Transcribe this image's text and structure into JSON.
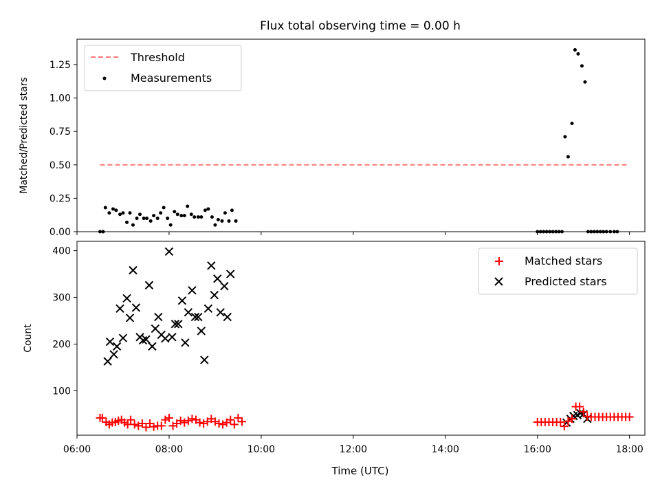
{
  "chart_data": [
    {
      "type": "scatter",
      "title": "Flux total observing time = 0.00 h",
      "xlabel": "",
      "ylabel": "Matched/Predicted stars",
      "xlim": [
        "06:00",
        "18:20"
      ],
      "ylim": [
        0,
        1.44
      ],
      "yticks": [
        0.0,
        0.25,
        0.5,
        0.75,
        1.0,
        1.25
      ],
      "ytick_labels": [
        "0.00",
        "0.25",
        "0.50",
        "0.75",
        "1.00",
        "1.25"
      ],
      "legend_position": "top-left",
      "threshold": {
        "name": "Threshold",
        "y": 0.5,
        "x_range": [
          "06:30",
          "18:00"
        ],
        "color": "#ff7777",
        "style": "dashed"
      },
      "series": [
        {
          "name": "Measurements",
          "color": "#000000",
          "marker": "dot",
          "points": [
            [
              "06:30",
              0.0
            ],
            [
              "06:34",
              0.0
            ],
            [
              "06:37",
              0.18
            ],
            [
              "06:42",
              0.14
            ],
            [
              "06:47",
              0.17
            ],
            [
              "06:51",
              0.16
            ],
            [
              "06:56",
              0.13
            ],
            [
              "07:00",
              0.14
            ],
            [
              "07:05",
              0.07
            ],
            [
              "07:09",
              0.14
            ],
            [
              "07:13",
              0.05
            ],
            [
              "07:18",
              0.1
            ],
            [
              "07:22",
              0.13
            ],
            [
              "07:27",
              0.1
            ],
            [
              "07:31",
              0.1
            ],
            [
              "07:36",
              0.08
            ],
            [
              "07:40",
              0.12
            ],
            [
              "07:45",
              0.1
            ],
            [
              "07:49",
              0.14
            ],
            [
              "07:53",
              0.18
            ],
            [
              "07:58",
              0.1
            ],
            [
              "08:02",
              0.05
            ],
            [
              "08:07",
              0.15
            ],
            [
              "08:11",
              0.13
            ],
            [
              "08:16",
              0.12
            ],
            [
              "08:20",
              0.12
            ],
            [
              "08:24",
              0.19
            ],
            [
              "08:29",
              0.13
            ],
            [
              "08:33",
              0.11
            ],
            [
              "08:38",
              0.11
            ],
            [
              "08:42",
              0.11
            ],
            [
              "08:47",
              0.16
            ],
            [
              "08:51",
              0.17
            ],
            [
              "08:56",
              0.11
            ],
            [
              "09:00",
              0.05
            ],
            [
              "09:04",
              0.09
            ],
            [
              "09:09",
              0.08
            ],
            [
              "09:13",
              0.14
            ],
            [
              "09:18",
              0.08
            ],
            [
              "09:22",
              0.16
            ],
            [
              "09:27",
              0.08
            ],
            [
              "16:00",
              0.0
            ],
            [
              "16:04",
              0.0
            ],
            [
              "16:08",
              0.0
            ],
            [
              "16:12",
              0.0
            ],
            [
              "16:16",
              0.0
            ],
            [
              "16:20",
              0.0
            ],
            [
              "16:24",
              0.0
            ],
            [
              "16:28",
              0.0
            ],
            [
              "16:32",
              0.0
            ],
            [
              "16:36",
              0.71
            ],
            [
              "16:40",
              0.56
            ],
            [
              "16:45",
              0.81
            ],
            [
              "16:49",
              1.36
            ],
            [
              "16:53",
              1.33
            ],
            [
              "16:58",
              1.24
            ],
            [
              "17:02",
              1.12
            ],
            [
              "17:06",
              0.0
            ],
            [
              "17:10",
              0.0
            ],
            [
              "17:14",
              0.0
            ],
            [
              "17:18",
              0.0
            ],
            [
              "17:22",
              0.0
            ],
            [
              "17:26",
              0.0
            ],
            [
              "17:30",
              0.0
            ],
            [
              "17:35",
              0.0
            ],
            [
              "17:40",
              0.0
            ],
            [
              "17:44",
              0.0
            ]
          ]
        }
      ]
    },
    {
      "type": "scatter",
      "title": "",
      "xlabel": "Time (UTC)",
      "ylabel": "Count",
      "xlim": [
        "06:00",
        "18:20"
      ],
      "ylim": [
        5,
        420
      ],
      "xticks": [
        "06:00",
        "08:00",
        "10:00",
        "12:00",
        "14:00",
        "16:00",
        "18:00"
      ],
      "yticks": [
        100,
        200,
        300,
        400
      ],
      "legend_position": "top-right",
      "series": [
        {
          "name": "Matched stars",
          "color": "#ff0000",
          "marker": "plus",
          "points": [
            [
              "06:30",
              42
            ],
            [
              "06:33",
              42
            ],
            [
              "06:38",
              33
            ],
            [
              "06:42",
              28
            ],
            [
              "06:46",
              32
            ],
            [
              "06:50",
              33
            ],
            [
              "06:54",
              36
            ],
            [
              "06:58",
              38
            ],
            [
              "07:02",
              32
            ],
            [
              "07:06",
              28
            ],
            [
              "07:10",
              38
            ],
            [
              "07:15",
              28
            ],
            [
              "07:20",
              25
            ],
            [
              "07:25",
              30
            ],
            [
              "07:30",
              22
            ],
            [
              "07:35",
              30
            ],
            [
              "07:40",
              23
            ],
            [
              "07:45",
              25
            ],
            [
              "07:50",
              25
            ],
            [
              "07:55",
              38
            ],
            [
              "08:00",
              42
            ],
            [
              "08:05",
              25
            ],
            [
              "08:10",
              30
            ],
            [
              "08:15",
              36
            ],
            [
              "08:20",
              32
            ],
            [
              "08:25",
              36
            ],
            [
              "08:30",
              40
            ],
            [
              "08:35",
              38
            ],
            [
              "08:40",
              32
            ],
            [
              "08:45",
              30
            ],
            [
              "08:50",
              34
            ],
            [
              "08:55",
              40
            ],
            [
              "09:00",
              34
            ],
            [
              "09:05",
              30
            ],
            [
              "09:10",
              28
            ],
            [
              "09:15",
              32
            ],
            [
              "09:20",
              38
            ],
            [
              "09:25",
              28
            ],
            [
              "09:30",
              42
            ],
            [
              "09:35",
              34
            ],
            [
              "16:00",
              33
            ],
            [
              "16:05",
              33
            ],
            [
              "16:10",
              33
            ],
            [
              "16:15",
              33
            ],
            [
              "16:20",
              33
            ],
            [
              "16:25",
              33
            ],
            [
              "16:30",
              33
            ],
            [
              "16:35",
              24
            ],
            [
              "16:40",
              35
            ],
            [
              "16:45",
              40
            ],
            [
              "16:50",
              66
            ],
            [
              "16:55",
              66
            ],
            [
              "17:00",
              55
            ],
            [
              "17:05",
              45
            ],
            [
              "17:10",
              44
            ],
            [
              "17:15",
              44
            ],
            [
              "17:20",
              44
            ],
            [
              "17:25",
              44
            ],
            [
              "17:30",
              44
            ],
            [
              "17:35",
              44
            ],
            [
              "17:40",
              44
            ],
            [
              "17:45",
              44
            ],
            [
              "17:50",
              44
            ],
            [
              "17:55",
              44
            ],
            [
              "18:00",
              44
            ]
          ]
        },
        {
          "name": "Predicted stars",
          "color": "#000000",
          "marker": "x",
          "points": [
            [
              "06:40",
              163
            ],
            [
              "06:43",
              205
            ],
            [
              "06:48",
              178
            ],
            [
              "06:52",
              195
            ],
            [
              "06:56",
              276
            ],
            [
              "07:00",
              213
            ],
            [
              "07:05",
              298
            ],
            [
              "07:09",
              256
            ],
            [
              "07:13",
              358
            ],
            [
              "07:17",
              278
            ],
            [
              "07:22",
              215
            ],
            [
              "07:26",
              208
            ],
            [
              "07:30",
              210
            ],
            [
              "07:34",
              326
            ],
            [
              "07:38",
              195
            ],
            [
              "07:42",
              233
            ],
            [
              "07:46",
              258
            ],
            [
              "07:50",
              220
            ],
            [
              "07:55",
              212
            ],
            [
              "08:00",
              398
            ],
            [
              "08:04",
              215
            ],
            [
              "08:08",
              243
            ],
            [
              "08:12",
              243
            ],
            [
              "08:17",
              293
            ],
            [
              "08:21",
              203
            ],
            [
              "08:25",
              268
            ],
            [
              "08:30",
              315
            ],
            [
              "08:34",
              258
            ],
            [
              "08:38",
              258
            ],
            [
              "08:42",
              228
            ],
            [
              "08:46",
              166
            ],
            [
              "08:51",
              276
            ],
            [
              "08:55",
              368
            ],
            [
              "08:59",
              305
            ],
            [
              "09:03",
              340
            ],
            [
              "09:07",
              268
            ],
            [
              "09:12",
              324
            ],
            [
              "09:16",
              258
            ],
            [
              "09:20",
              350
            ],
            [
              "16:38",
              32
            ],
            [
              "16:43",
              40
            ],
            [
              "16:47",
              46
            ],
            [
              "16:52",
              48
            ],
            [
              "16:56",
              52
            ],
            [
              "17:00",
              50
            ],
            [
              "17:05",
              40
            ]
          ]
        }
      ]
    }
  ]
}
